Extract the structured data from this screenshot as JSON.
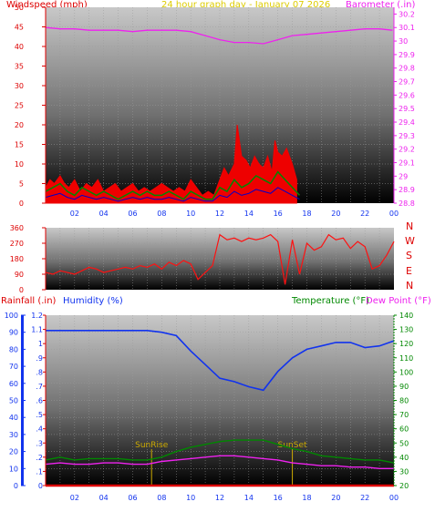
{
  "header": {
    "wind_label": "Windspeed (mph)",
    "title": "24 hour graph day - January 07 2026",
    "baro_label": "Barometer (.in)"
  },
  "lower_header": {
    "rain_label": "Rainfall (.in)",
    "humidity_label": "Humidity (%)",
    "temp_label": "Temperature (°F)",
    "dew_label": "Dew Point (°F)"
  },
  "compass": [
    "N",
    "W",
    "S",
    "E",
    "N"
  ],
  "colors": {
    "wind": "#ff0000",
    "gust_fill": "#ee0000",
    "wind_blue": "#0000cc",
    "wind_green": "#008800",
    "barometer": "#ee22ee",
    "direction": "#ff1111",
    "humidity": "#1133ee",
    "temperature": "#008800",
    "dewpoint": "#ee22ee",
    "rainfall": "#dd0000",
    "marker": "#ccaa00"
  },
  "chart_data": [
    {
      "type": "line",
      "name": "wind-barometer",
      "xlim": [
        0,
        24
      ],
      "x_ticks": [
        "02",
        "04",
        "06",
        "08",
        "10",
        "12",
        "14",
        "16",
        "18",
        "20",
        "22",
        "00"
      ],
      "ylabel": "Windspeed (mph)",
      "y2label": "Barometer (.in)",
      "ylim": [
        0,
        50
      ],
      "y_ticks": [
        "0",
        "5",
        "10",
        "15",
        "20",
        "25",
        "30",
        "35",
        "40",
        "45",
        "50"
      ],
      "y2lim": [
        29.8,
        30.2
      ],
      "y2_ticks": [
        "28.8",
        "28.9",
        "29",
        "29.1",
        "29.2",
        "29.3",
        "29.4",
        "29.5",
        "29.6",
        "29.7",
        "29.8",
        "29.9",
        "30",
        "30.1",
        "30.2"
      ],
      "y2_range": [
        28.8,
        30.25
      ],
      "series": [
        {
          "name": "Barometer (.in)",
          "axis": "y2",
          "x": [
            0,
            1,
            2,
            3,
            4,
            5,
            6,
            7,
            8,
            9,
            10,
            11,
            12,
            13,
            14,
            15,
            16,
            17,
            18,
            19,
            20,
            21,
            22,
            23,
            23.9
          ],
          "y": [
            30.1,
            30.09,
            30.09,
            30.08,
            30.08,
            30.08,
            30.07,
            30.08,
            30.08,
            30.08,
            30.07,
            30.04,
            30.01,
            29.99,
            29.99,
            29.98,
            30.01,
            30.04,
            30.05,
            30.06,
            30.07,
            30.08,
            30.09,
            30.09,
            30.08
          ]
        },
        {
          "name": "Windspeed (mph)",
          "x": [
            0,
            0.5,
            1,
            1.5,
            2,
            2.5,
            3,
            3.5,
            4,
            4.5,
            5,
            5.5,
            6,
            6.5,
            7,
            7.5,
            8,
            8.5,
            9,
            9.5,
            10,
            10.5,
            11,
            11.5,
            12,
            12.5,
            13,
            13.5,
            14,
            14.5,
            15,
            15.5,
            16,
            16.5,
            17,
            17.5
          ],
          "y": [
            3,
            4,
            5,
            3,
            2,
            4,
            3,
            2,
            3,
            2,
            1,
            2,
            3,
            2,
            3,
            2,
            2,
            3,
            2,
            1,
            3,
            2,
            1,
            1,
            4,
            3,
            6,
            4,
            5,
            7,
            6,
            5,
            8,
            6,
            4,
            2
          ]
        },
        {
          "name": "Gust",
          "x": [
            0,
            0.3,
            0.6,
            1,
            1.3,
            1.6,
            2,
            2.4,
            2.8,
            3.2,
            3.6,
            4,
            4.4,
            4.8,
            5.2,
            5.6,
            6,
            6.4,
            6.8,
            7.2,
            7.6,
            8,
            8.4,
            8.8,
            9.2,
            9.6,
            10,
            10.4,
            10.8,
            11.2,
            11.6,
            12,
            12.3,
            12.6,
            13,
            13.2,
            13.5,
            13.8,
            14.1,
            14.4,
            14.7,
            15,
            15.3,
            15.6,
            15.8,
            16,
            16.3,
            16.6,
            17,
            17.3
          ],
          "y": [
            4,
            6,
            5,
            7,
            5,
            4,
            6,
            3,
            5,
            4,
            6,
            3,
            4,
            5,
            3,
            4,
            5,
            3,
            4,
            3,
            4,
            5,
            4,
            3,
            4,
            3,
            6,
            4,
            2,
            3,
            2,
            6,
            9,
            7,
            10,
            20,
            12,
            11,
            9,
            12,
            10,
            9,
            12,
            8,
            16,
            13,
            12,
            14,
            10,
            6
          ]
        }
      ]
    },
    {
      "type": "line",
      "name": "wind-direction",
      "xlim": [
        0,
        24
      ],
      "ylim": [
        0,
        360
      ],
      "y_ticks": [
        "0",
        "90",
        "180",
        "270",
        "360"
      ],
      "series": [
        {
          "name": "Wind Direction",
          "x": [
            0,
            0.5,
            1,
            1.5,
            2,
            2.5,
            3,
            3.5,
            4,
            4.5,
            5,
            5.5,
            6,
            6.5,
            7,
            7.5,
            8,
            8.5,
            9,
            9.5,
            10,
            10.5,
            11,
            11.5,
            12,
            12.5,
            13,
            13.5,
            14,
            14.5,
            15,
            15.5,
            16,
            16.5,
            17,
            17.5,
            18,
            18.5,
            19,
            19.5,
            20,
            20.5,
            21,
            21.5,
            22,
            22.5,
            23,
            23.5,
            24
          ],
          "y": [
            100,
            90,
            110,
            100,
            90,
            110,
            130,
            120,
            100,
            110,
            120,
            130,
            120,
            140,
            130,
            150,
            120,
            160,
            140,
            170,
            150,
            60,
            100,
            140,
            320,
            290,
            300,
            280,
            300,
            290,
            300,
            320,
            280,
            30,
            290,
            90,
            270,
            230,
            250,
            320,
            290,
            300,
            240,
            280,
            250,
            120,
            140,
            200,
            280
          ]
        }
      ]
    },
    {
      "type": "line",
      "name": "humidity-temperature",
      "xlim": [
        0,
        24
      ],
      "x_ticks": [
        "02",
        "04",
        "06",
        "08",
        "10",
        "12",
        "14",
        "16",
        "18",
        "20",
        "22",
        "00"
      ],
      "ylim": [
        0,
        100
      ],
      "y_ticks": [
        "0",
        "10",
        "20",
        "30",
        "40",
        "50",
        "60",
        "70",
        "80",
        "90",
        "100"
      ],
      "rain_ticks": [
        "0",
        ".1",
        ".2",
        ".3",
        ".4",
        ".5",
        ".6",
        ".7",
        ".8",
        ".9",
        "1",
        "1.1",
        "1.2"
      ],
      "rain_range": [
        0,
        1.2
      ],
      "temp_ticks": [
        "20",
        "30",
        "40",
        "50",
        "60",
        "70",
        "80",
        "90",
        "100",
        "110",
        "120",
        "130",
        "140"
      ],
      "temp_range": [
        20,
        140
      ],
      "series": [
        {
          "name": "Humidity (%)",
          "x": [
            0,
            1,
            2,
            3,
            4,
            5,
            6,
            7,
            8,
            9,
            10,
            11,
            12,
            13,
            14,
            15,
            16,
            17,
            18,
            19,
            20,
            21,
            22,
            23,
            24
          ],
          "y": [
            91,
            91,
            91,
            91,
            91,
            91,
            91,
            91,
            90,
            88,
            79,
            71,
            63,
            61,
            58,
            56,
            67,
            75,
            80,
            82,
            84,
            84,
            81,
            82,
            85
          ]
        },
        {
          "name": "Temperature (°F)",
          "axis": "temp",
          "x": [
            0,
            1,
            2,
            3,
            4,
            5,
            6,
            7,
            8,
            9,
            10,
            11,
            12,
            13,
            14,
            15,
            16,
            17,
            18,
            19,
            20,
            21,
            22,
            23,
            24
          ],
          "y": [
            38,
            40,
            38,
            39,
            39,
            39,
            38,
            38,
            40,
            44,
            47,
            49,
            51,
            52,
            52,
            52,
            49,
            46,
            44,
            41,
            40,
            39,
            38,
            38,
            36
          ]
        },
        {
          "name": "Dew Point (°F)",
          "axis": "temp",
          "x": [
            0,
            1,
            2,
            3,
            4,
            5,
            6,
            7,
            8,
            9,
            10,
            11,
            12,
            13,
            14,
            15,
            16,
            17,
            18,
            19,
            20,
            21,
            22,
            23,
            24
          ],
          "y": [
            35,
            36,
            35,
            35,
            36,
            36,
            35,
            35,
            37,
            38,
            39,
            40,
            41,
            41,
            40,
            39,
            38,
            36,
            35,
            34,
            34,
            33,
            33,
            32,
            32
          ]
        },
        {
          "name": "Rainfall (.in)",
          "axis": "rain",
          "x": [
            0,
            24
          ],
          "y": [
            0,
            0
          ]
        }
      ],
      "annotations": [
        {
          "label": "SunRise",
          "x": 7.3
        },
        {
          "label": "SunSet",
          "x": 17.0
        }
      ]
    }
  ]
}
